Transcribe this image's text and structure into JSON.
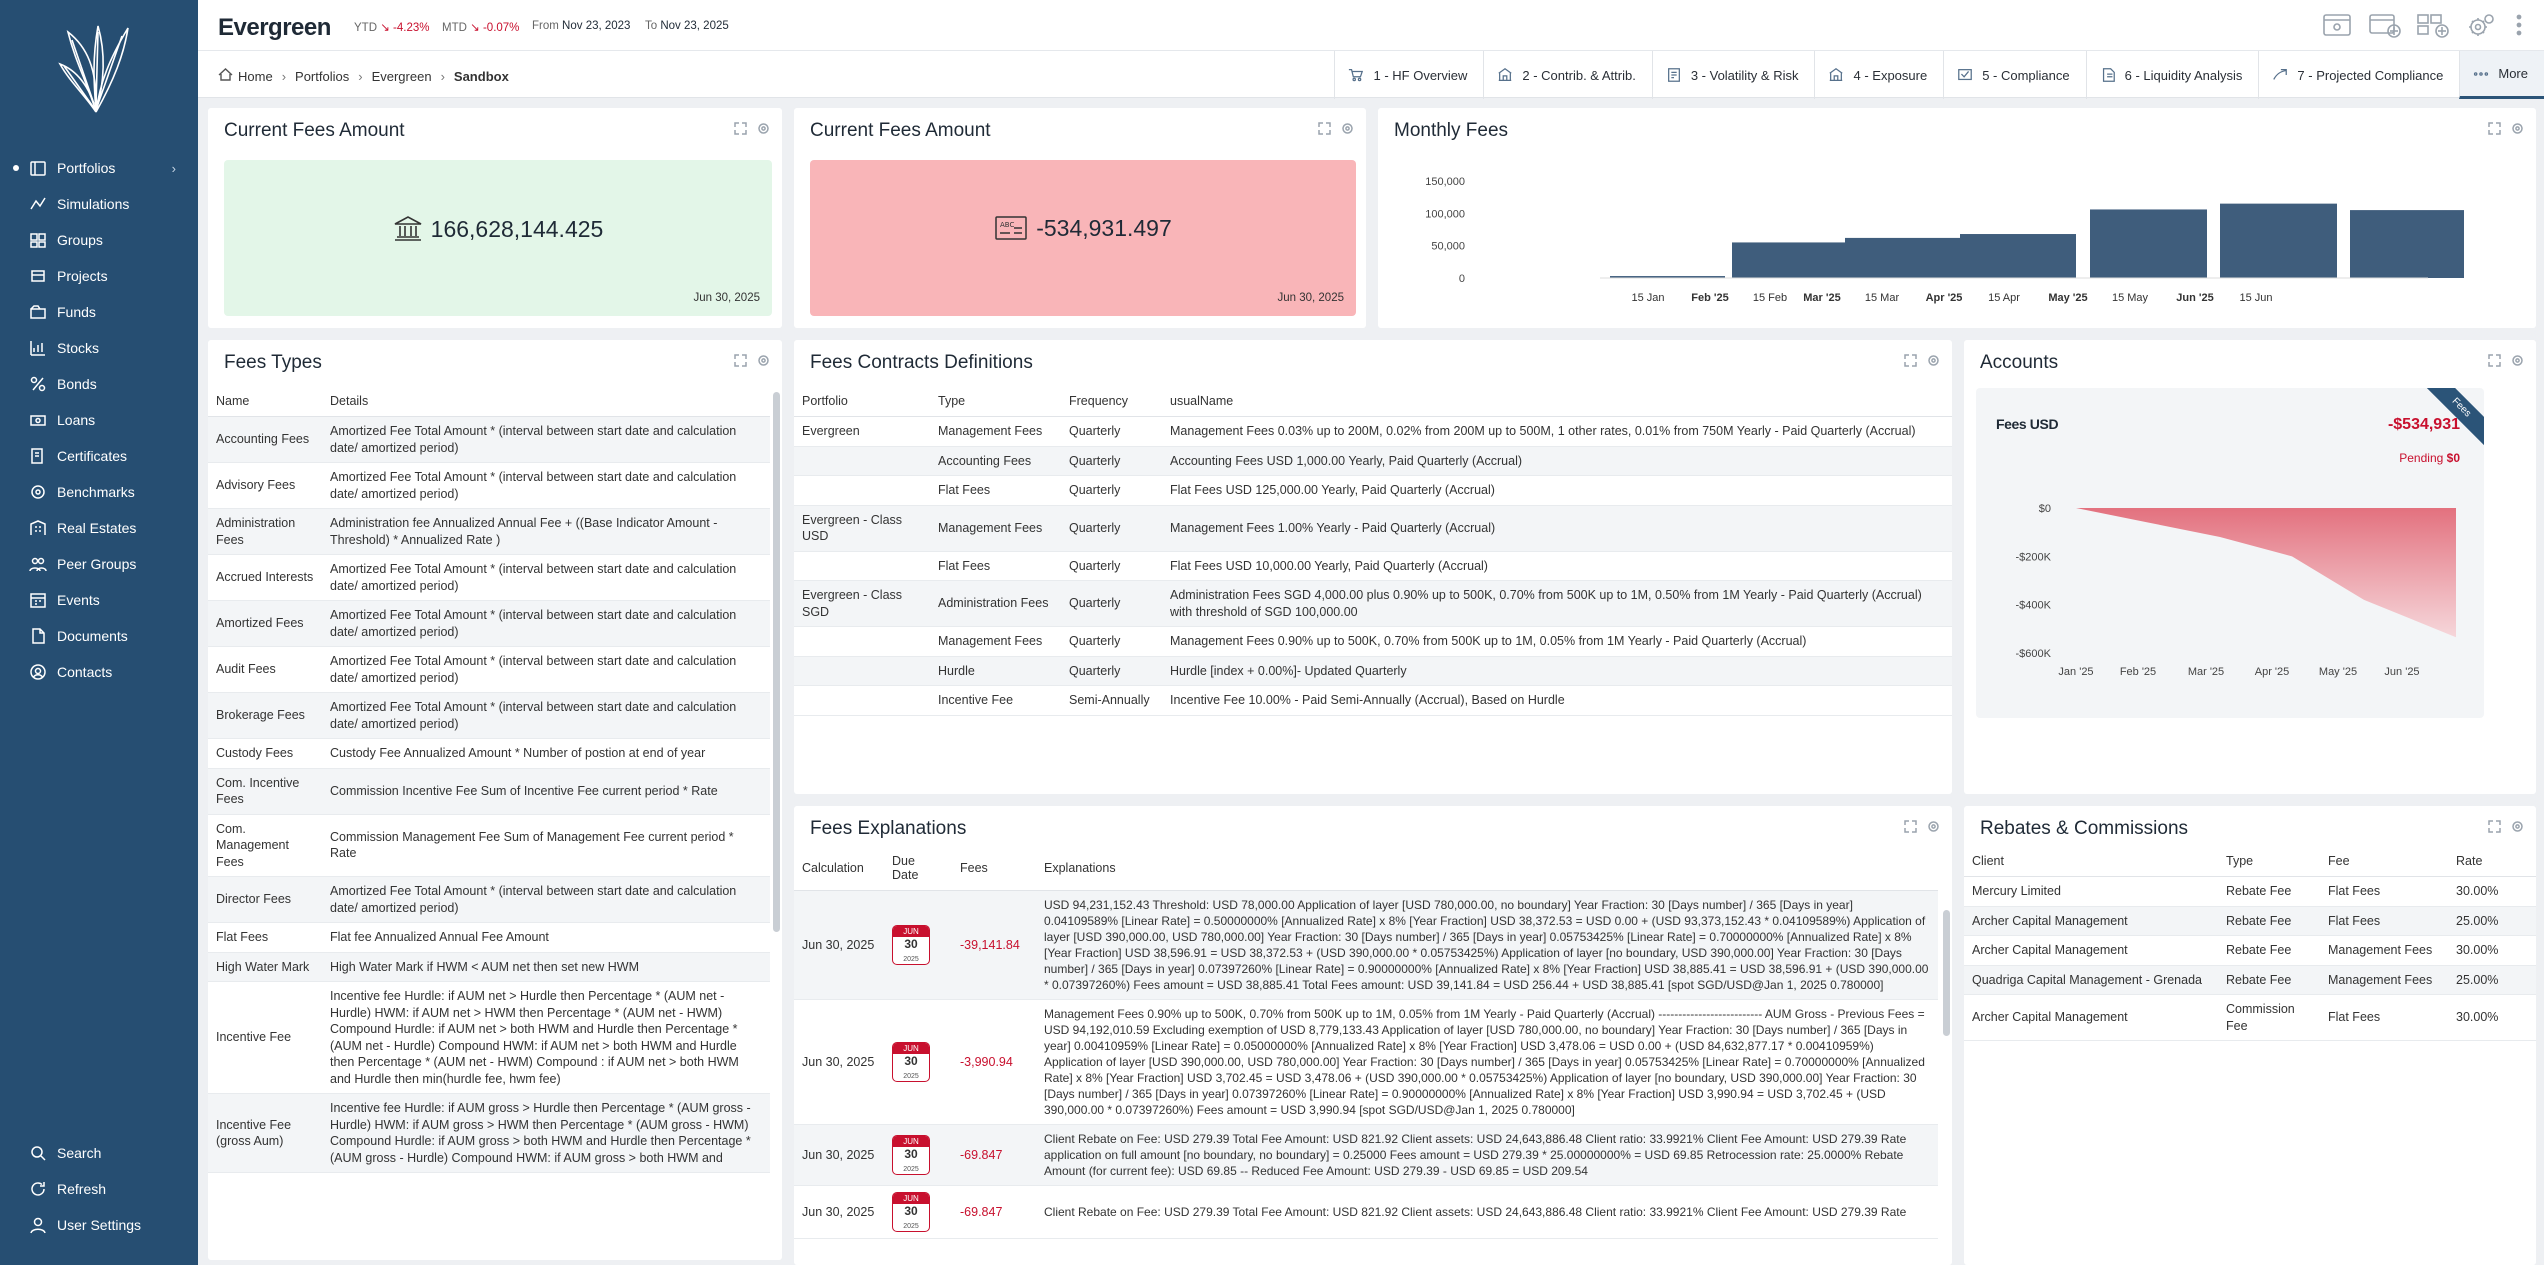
{
  "header": {
    "title": "Evergreen",
    "ytd_label": "YTD",
    "ytd_value": "-4.23%",
    "mtd_label": "MTD",
    "mtd_value": "-0.07%",
    "from_label": "From",
    "from_date": "Nov 23, 2023",
    "to_label": "To",
    "to_date": "Nov 23, 2025"
  },
  "sidebar": {
    "items": [
      {
        "label": "Portfolios",
        "icon": "portfolio-icon"
      },
      {
        "label": "Simulations",
        "icon": "simulation-icon"
      },
      {
        "label": "Groups",
        "icon": "groups-icon"
      },
      {
        "label": "Projects",
        "icon": "projects-icon"
      },
      {
        "label": "Funds",
        "icon": "funds-icon"
      },
      {
        "label": "Stocks",
        "icon": "stocks-icon"
      },
      {
        "label": "Bonds",
        "icon": "bonds-icon"
      },
      {
        "label": "Loans",
        "icon": "loans-icon"
      },
      {
        "label": "Certificates",
        "icon": "certificates-icon"
      },
      {
        "label": "Benchmarks",
        "icon": "benchmarks-icon"
      },
      {
        "label": "Real Estates",
        "icon": "real-estates-icon"
      },
      {
        "label": "Peer Groups",
        "icon": "peer-groups-icon"
      },
      {
        "label": "Events",
        "icon": "events-icon"
      },
      {
        "label": "Documents",
        "icon": "documents-icon"
      },
      {
        "label": "Contacts",
        "icon": "contacts-icon"
      }
    ],
    "bottom": [
      {
        "label": "Search",
        "icon": "search-icon"
      },
      {
        "label": "Refresh",
        "icon": "refresh-icon"
      },
      {
        "label": "User Settings",
        "icon": "user-icon"
      }
    ]
  },
  "breadcrumb": [
    "Home",
    "Portfolios",
    "Evergreen",
    "Sandbox"
  ],
  "tabs": [
    "1 - HF Overview",
    "2 - Contrib. & Attrib.",
    "3 - Volatility & Risk",
    "4 - Exposure",
    "5 - Compliance",
    "6 - Liquidity Analysis",
    "7 - Projected Compliance",
    "More"
  ],
  "current_fees_1": {
    "title": "Current Fees Amount",
    "value": "166,628,144.425",
    "date": "Jun 30, 2025",
    "color": "#e3f6e8"
  },
  "current_fees_2": {
    "title": "Current Fees Amount",
    "value": "-534,931.497",
    "date": "Jun 30, 2025",
    "color": "#f9b5b8"
  },
  "monthly_fees": {
    "title": "Monthly Fees"
  },
  "accounts": {
    "title": "Accounts",
    "account_name": "Fees USD",
    "amount": "-$534,931",
    "pending_label": "Pending",
    "pending_value": "$0",
    "ribbon": "Fees"
  },
  "chart_data": [
    {
      "type": "bar",
      "name": "monthly_fees",
      "ylim": [
        0,
        150000
      ],
      "yticks": [
        "150,000",
        "100,000",
        "50,000",
        "0"
      ],
      "xticks": [
        "15 Jan",
        "Feb '25",
        "15 Feb",
        "Mar '25",
        "15 Mar",
        "Apr '25",
        "15 Apr",
        "May '25",
        "15 May",
        "Jun '25",
        "15 Jun"
      ],
      "values": [
        3000,
        55000,
        62000,
        68000,
        106000,
        115000,
        105000
      ],
      "color": "#3f5d7c"
    },
    {
      "type": "area",
      "name": "accounts",
      "x": [
        "Jan '25",
        "Feb '25",
        "Mar '25",
        "Apr '25",
        "May '25",
        "Jun '25"
      ],
      "y": [
        0,
        -60000,
        -120000,
        -200000,
        -380000,
        -534931
      ],
      "yticks": [
        "$0",
        "-$200K",
        "-$400K",
        "-$600K"
      ],
      "ylim": [
        -600000,
        0
      ],
      "color": "#c8102e"
    }
  ],
  "fees_types": {
    "title": "Fees Types",
    "headers": [
      "Name",
      "Details"
    ],
    "rows": [
      [
        "Accounting Fees",
        "Amortized Fee Total Amount * (interval between start date and calculation date/ amortized period)"
      ],
      [
        "Advisory Fees",
        "Amortized Fee Total Amount * (interval between start date and calculation date/ amortized period)"
      ],
      [
        "Administration Fees",
        "Administration fee Annualized Annual Fee + ((Base Indicator Amount - Threshold) * Annualized Rate )"
      ],
      [
        "Accrued Interests",
        "Amortized Fee Total Amount * (interval between start date and calculation date/ amortized period)"
      ],
      [
        "Amortized Fees",
        "Amortized Fee Total Amount * (interval between start date and calculation date/ amortized period)"
      ],
      [
        "Audit Fees",
        "Amortized Fee Total Amount * (interval between start date and calculation date/ amortized period)"
      ],
      [
        "Brokerage Fees",
        "Amortized Fee Total Amount * (interval between start date and calculation date/ amortized period)"
      ],
      [
        "Custody Fees",
        "Custody Fee Annualized Amount * Number of postion at end of year"
      ],
      [
        "Com. Incentive Fees",
        "Commission Incentive Fee Sum of Incentive Fee current period * Rate"
      ],
      [
        "Com. Management Fees",
        "Commission Management Fee Sum of Management Fee current period * Rate"
      ],
      [
        "Director Fees",
        "Amortized Fee Total Amount * (interval between start date and calculation date/ amortized period)"
      ],
      [
        "Flat Fees",
        "Flat fee Annualized Annual Fee Amount"
      ],
      [
        "High Water Mark",
        "High Water Mark if HWM < AUM net then set new HWM"
      ],
      [
        "Incentive Fee",
        "Incentive fee Hurdle: if AUM net > Hurdle then Percentage * (AUM net - Hurdle) HWM: if AUM net > HWM then Percentage * (AUM net - HWM) Compound Hurdle: if AUM net > both HWM and Hurdle then Percentage * (AUM net - Hurdle) Compound HWM: if AUM net > both HWM and Hurdle then Percentage * (AUM net - HWM) Compound : if AUM net > both HWM and Hurdle then min(hurdle fee, hwm fee)"
      ],
      [
        "Incentive Fee (gross Aum)",
        "Incentive fee Hurdle: if AUM gross > Hurdle then Percentage * (AUM gross - Hurdle) HWM: if AUM gross > HWM then Percentage * (AUM gross - HWM) Compound Hurdle: if AUM gross > both HWM and Hurdle then Percentage * (AUM gross - Hurdle) Compound HWM: if AUM gross > both HWM and"
      ]
    ]
  },
  "contracts": {
    "title": "Fees Contracts Definitions",
    "headers": [
      "Portfolio",
      "Type",
      "Frequency",
      "usualName"
    ],
    "rows": [
      [
        "Evergreen",
        "Management Fees",
        "Quarterly",
        "Management Fees 0.03% up to 200M, 0.02% from 200M up to 500M, 1 other rates, 0.01% from 750M Yearly - Paid Quarterly (Accrual)"
      ],
      [
        "",
        "Accounting Fees",
        "Quarterly",
        "Accounting Fees USD 1,000.00 Yearly, Paid Quarterly (Accrual)"
      ],
      [
        "",
        "Flat Fees",
        "Quarterly",
        "Flat Fees USD 125,000.00 Yearly, Paid Quarterly (Accrual)"
      ],
      [
        "Evergreen - Class USD",
        "Management Fees",
        "Quarterly",
        "Management Fees 1.00% Yearly - Paid Quarterly (Accrual)"
      ],
      [
        "",
        "Flat Fees",
        "Quarterly",
        "Flat Fees USD 10,000.00 Yearly, Paid Quarterly (Accrual)"
      ],
      [
        "Evergreen - Class SGD",
        "Administration Fees",
        "Quarterly",
        "Administration Fees SGD 4,000.00 plus 0.90% up to 500K, 0.70% from 500K up to 1M, 0.50% from 1M Yearly - Paid Quarterly (Accrual) with threshold of SGD 100,000.00"
      ],
      [
        "",
        "Management Fees",
        "Quarterly",
        "Management Fees 0.90% up to 500K, 0.70% from 500K up to 1M, 0.05% from 1M Yearly - Paid Quarterly (Accrual)"
      ],
      [
        "",
        "Hurdle",
        "Quarterly",
        "Hurdle [index + 0.00%]- Updated Quarterly"
      ],
      [
        "",
        "Incentive Fee",
        "Semi-Annually",
        "Incentive Fee 10.00% - Paid Semi-Annually (Accrual), Based on Hurdle"
      ]
    ]
  },
  "explanations": {
    "title": "Fees Explanations",
    "headers": [
      "Calculation",
      "Due Date",
      "Fees",
      "Explanations"
    ],
    "rows": [
      {
        "calc": "Jun 30, 2025",
        "m": "JUN",
        "d": "30",
        "y": "2025",
        "fee": "-39,141.84",
        "text": "USD 94,231,152.43 Threshold: USD 78,000.00 Application of layer [USD 780,000.00, no boundary] Year Fraction: 30 [Days number] / 365 [Days in year] 0.04109589% [Linear Rate] = 0.50000000% [Annualized Rate] x 8% [Year Fraction] USD 38,372.53 = USD 0.00 + (USD 93,373,152.43 * 0.04109589%) Application of layer [USD 390,000.00, USD 780,000.00] Year Fraction: 30 [Days number] / 365 [Days in year] 0.05753425% [Linear Rate] = 0.70000000% [Annualized Rate] x 8% [Year Fraction] USD 38,596.91 = USD 38,372.53 + (USD 390,000.00 * 0.05753425%) Application of layer [no boundary, USD 390,000.00] Year Fraction: 30 [Days number] / 365 [Days in year] 0.07397260% [Linear Rate] = 0.90000000% [Annualized Rate] x 8% [Year Fraction] USD 38,885.41 = USD 38,596.91 + (USD 390,000.00 * 0.07397260%) Fees amount = USD 38,885.41 Total Fees amount: USD 39,141.84 = USD 256.44 + USD 38,885.41 [spot SGD/USD@Jan 1, 2025 0.780000]"
      },
      {
        "calc": "Jun 30, 2025",
        "m": "JUN",
        "d": "30",
        "y": "2025",
        "fee": "-3,990.94",
        "text": "Management Fees 0.90% up to 500K, 0.70% from 500K up to 1M, 0.05% from 1M Yearly - Paid Quarterly (Accrual) -------------------------- AUM Gross - Previous Fees = USD 94,192,010.59 Excluding exemption of USD 8,779,133.43 Application of layer [USD 780,000.00, no boundary] Year Fraction: 30 [Days number] / 365 [Days in year] 0.00410959% [Linear Rate] = 0.05000000% [Annualized Rate] x 8% [Year Fraction] USD 3,478.06 = USD 0.00 + (USD 84,632,877.17 * 0.00410959%) Application of layer [USD 390,000.00, USD 780,000.00] Year Fraction: 30 [Days number] / 365 [Days in year] 0.05753425% [Linear Rate] = 0.70000000% [Annualized Rate] x 8% [Year Fraction] USD 3,702.45 = USD 3,478.06 + (USD 390,000.00 * 0.05753425%) Application of layer [no boundary, USD 390,000.00] Year Fraction: 30 [Days number] / 365 [Days in year] 0.07397260% [Linear Rate] = 0.90000000% [Annualized Rate] x 8% [Year Fraction] USD 3,990.94 = USD 3,702.45 + (USD 390,000.00 * 0.07397260%) Fees amount = USD 3,990.94 [spot SGD/USD@Jan 1, 2025 0.780000]"
      },
      {
        "calc": "Jun 30, 2025",
        "m": "JUN",
        "d": "30",
        "y": "2025",
        "fee": "-69.847",
        "text": "Client Rebate on Fee: USD 279.39 Total Fee Amount: USD 821.92 Client assets: USD 24,643,886.48 Client ratio: 33.9921% Client Fee Amount: USD 279.39 Rate application on full amount [no boundary, no boundary] = 0.25000 Fees amount = USD 279.39 * 25.00000000% = USD 69.85 Retrocession rate: 25.0000% Rebate Amount (for current fee): USD 69.85 -- Reduced Fee Amount: USD 279.39 - USD 69.85 = USD 209.54"
      },
      {
        "calc": "Jun 30, 2025",
        "m": "JUN",
        "d": "30",
        "y": "2025",
        "fee": "-69.847",
        "text": "Client Rebate on Fee: USD 279.39 Total Fee Amount: USD 821.92 Client assets: USD 24,643,886.48 Client ratio: 33.9921% Client Fee Amount: USD 279.39 Rate"
      }
    ]
  },
  "rebates": {
    "title": "Rebates & Commissions",
    "headers": [
      "Client",
      "Type",
      "Fee",
      "Rate"
    ],
    "rows": [
      [
        "Mercury Limited",
        "Rebate Fee",
        "Flat Fees",
        "30.00%"
      ],
      [
        "Archer Capital Management",
        "Rebate Fee",
        "Flat Fees",
        "25.00%"
      ],
      [
        "Archer Capital Management",
        "Rebate Fee",
        "Management Fees",
        "30.00%"
      ],
      [
        "Quadriga Capital Management - Grenada",
        "Rebate Fee",
        "Management Fees",
        "25.00%"
      ],
      [
        "Archer Capital Management",
        "Commission Fee",
        "Flat Fees",
        "30.00%"
      ]
    ]
  }
}
